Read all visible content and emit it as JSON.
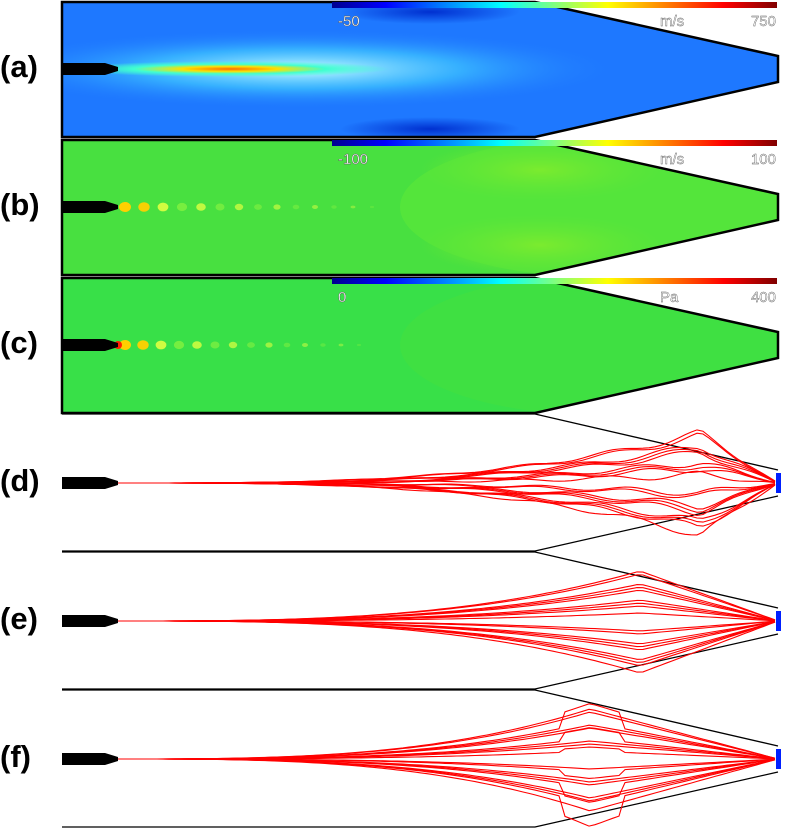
{
  "panels": [
    {
      "label": "(a)",
      "colorbar": {
        "min": "-50",
        "unit": "m/s",
        "max": "750"
      }
    },
    {
      "label": "(b)",
      "colorbar": {
        "min": "-100",
        "unit": "m/s",
        "max": "100"
      }
    },
    {
      "label": "(c)",
      "colorbar": {
        "min": "0",
        "unit": "Pa",
        "max": "400"
      }
    },
    {
      "label": "(d)"
    },
    {
      "label": "(e)"
    },
    {
      "label": "(f)"
    }
  ]
}
